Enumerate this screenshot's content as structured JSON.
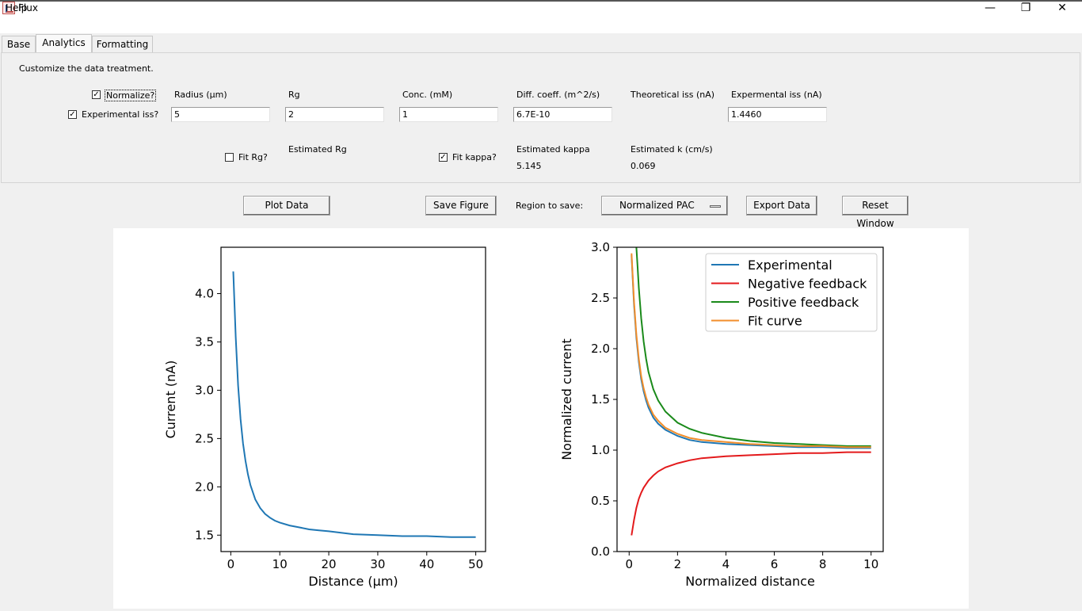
{
  "window": {
    "title": "Flux",
    "minimize": "—",
    "restore": "❐",
    "close": "✕",
    "icon": "flux-app-icon"
  },
  "menu": {
    "help": "Help"
  },
  "tabs": [
    {
      "label": "Base"
    },
    {
      "label": "Analytics"
    },
    {
      "label": "Formatting"
    }
  ],
  "panel": {
    "description": "Customize the data treatment.",
    "normalize_label": "Normalize?",
    "normalize_checked": "✓",
    "experimental_iss_label": "Experimental iss?",
    "experimental_iss_checked": "✓",
    "fit_rg_label": "Fit Rg?",
    "fit_rg_checked": "",
    "fit_kappa_label": "Fit kappa?",
    "fit_kappa_checked": "✓",
    "headers": {
      "radius": "Radius (µm)",
      "rg": "Rg",
      "conc": "Conc. (mM)",
      "diff": "Diff. coeff. (m^2/s)",
      "theoretical_iss": "Theoretical iss (nA)",
      "experimental_iss": "Expermental iss (nA)"
    },
    "values": {
      "radius": "5",
      "rg": "2",
      "conc": "1",
      "diff": "6.7E-10",
      "experimental_iss": "1.4460"
    },
    "estimated_rg_label": "Estimated Rg",
    "estimated_kappa_label": "Estimated kappa",
    "estimated_kappa_value": "5.145",
    "estimated_k_label": "Estimated k (cm/s)",
    "estimated_k_value": "0.069"
  },
  "toolbar": {
    "plot": "Plot Data",
    "save_figure": "Save Figure",
    "region_label": "Region to save:",
    "region_value": "Normalized PAC",
    "export": "Export Data",
    "reset": "Reset Window"
  },
  "chart_data": [
    {
      "type": "line",
      "xlabel": "Distance (µm)",
      "ylabel": "Current (nA)",
      "xlim": [
        -2,
        52
      ],
      "ylim": [
        1.33,
        4.48
      ],
      "xticks": [
        0,
        10,
        20,
        30,
        40,
        50
      ],
      "yticks": [
        1.5,
        2.0,
        2.5,
        3.0,
        3.5,
        4.0
      ],
      "series": [
        {
          "color": "#1f77b4",
          "x": [
            0.5,
            1,
            1.5,
            2,
            2.5,
            3,
            3.5,
            4,
            5,
            6,
            7,
            8,
            9,
            10,
            12,
            14,
            16,
            18,
            20,
            25,
            30,
            35,
            40,
            45,
            50
          ],
          "y": [
            4.23,
            3.55,
            3.05,
            2.7,
            2.45,
            2.27,
            2.13,
            2.02,
            1.87,
            1.78,
            1.72,
            1.68,
            1.65,
            1.63,
            1.6,
            1.58,
            1.56,
            1.55,
            1.54,
            1.51,
            1.5,
            1.49,
            1.49,
            1.48,
            1.48
          ]
        }
      ]
    },
    {
      "type": "line",
      "xlabel": "Normalized distance",
      "ylabel": "Normalized current",
      "xlim": [
        -0.5,
        10.5
      ],
      "ylim": [
        0.0,
        3.0
      ],
      "xticks": [
        0,
        2,
        4,
        6,
        8,
        10
      ],
      "yticks": [
        0.0,
        0.5,
        1.0,
        1.5,
        2.0,
        2.5,
        3.0
      ],
      "legend": "top-right",
      "series": [
        {
          "name": "Experimental",
          "color": "#1f77b4",
          "x": [
            0.1,
            0.2,
            0.3,
            0.4,
            0.5,
            0.6,
            0.7,
            0.8,
            1.0,
            1.2,
            1.5,
            2,
            2.5,
            3,
            4,
            5,
            6,
            7,
            8,
            9,
            10
          ],
          "y": [
            2.92,
            2.44,
            2.11,
            1.87,
            1.7,
            1.58,
            1.49,
            1.42,
            1.32,
            1.26,
            1.2,
            1.14,
            1.1,
            1.08,
            1.06,
            1.05,
            1.04,
            1.03,
            1.03,
            1.02,
            1.02
          ]
        },
        {
          "name": "Negative feedback",
          "color": "#e31a1c",
          "x": [
            0.1,
            0.2,
            0.3,
            0.4,
            0.5,
            0.6,
            0.8,
            1.0,
            1.2,
            1.5,
            2,
            2.5,
            3,
            4,
            5,
            6,
            7,
            8,
            9,
            10
          ],
          "y": [
            0.16,
            0.31,
            0.43,
            0.52,
            0.58,
            0.63,
            0.7,
            0.75,
            0.79,
            0.83,
            0.87,
            0.9,
            0.92,
            0.94,
            0.95,
            0.96,
            0.97,
            0.97,
            0.98,
            0.98
          ]
        },
        {
          "name": "Positive feedback",
          "color": "#1a8a1a",
          "x": [
            0.3,
            0.35,
            0.4,
            0.5,
            0.6,
            0.7,
            0.8,
            1.0,
            1.2,
            1.5,
            2,
            2.5,
            3,
            4,
            5,
            6,
            7,
            8,
            9,
            10
          ],
          "y": [
            3.0,
            2.8,
            2.6,
            2.3,
            2.07,
            1.9,
            1.77,
            1.6,
            1.49,
            1.38,
            1.27,
            1.21,
            1.17,
            1.12,
            1.09,
            1.07,
            1.06,
            1.05,
            1.04,
            1.04
          ]
        },
        {
          "name": "Fit curve",
          "color": "#f28e2b",
          "x": [
            0.1,
            0.2,
            0.3,
            0.4,
            0.5,
            0.6,
            0.7,
            0.8,
            1.0,
            1.2,
            1.5,
            2,
            2.5,
            3,
            4,
            5,
            6,
            7,
            8,
            9,
            10
          ],
          "y": [
            2.94,
            2.47,
            2.14,
            1.9,
            1.73,
            1.61,
            1.52,
            1.45,
            1.35,
            1.29,
            1.22,
            1.16,
            1.12,
            1.1,
            1.08,
            1.06,
            1.05,
            1.04,
            1.04,
            1.03,
            1.03
          ]
        }
      ]
    }
  ]
}
